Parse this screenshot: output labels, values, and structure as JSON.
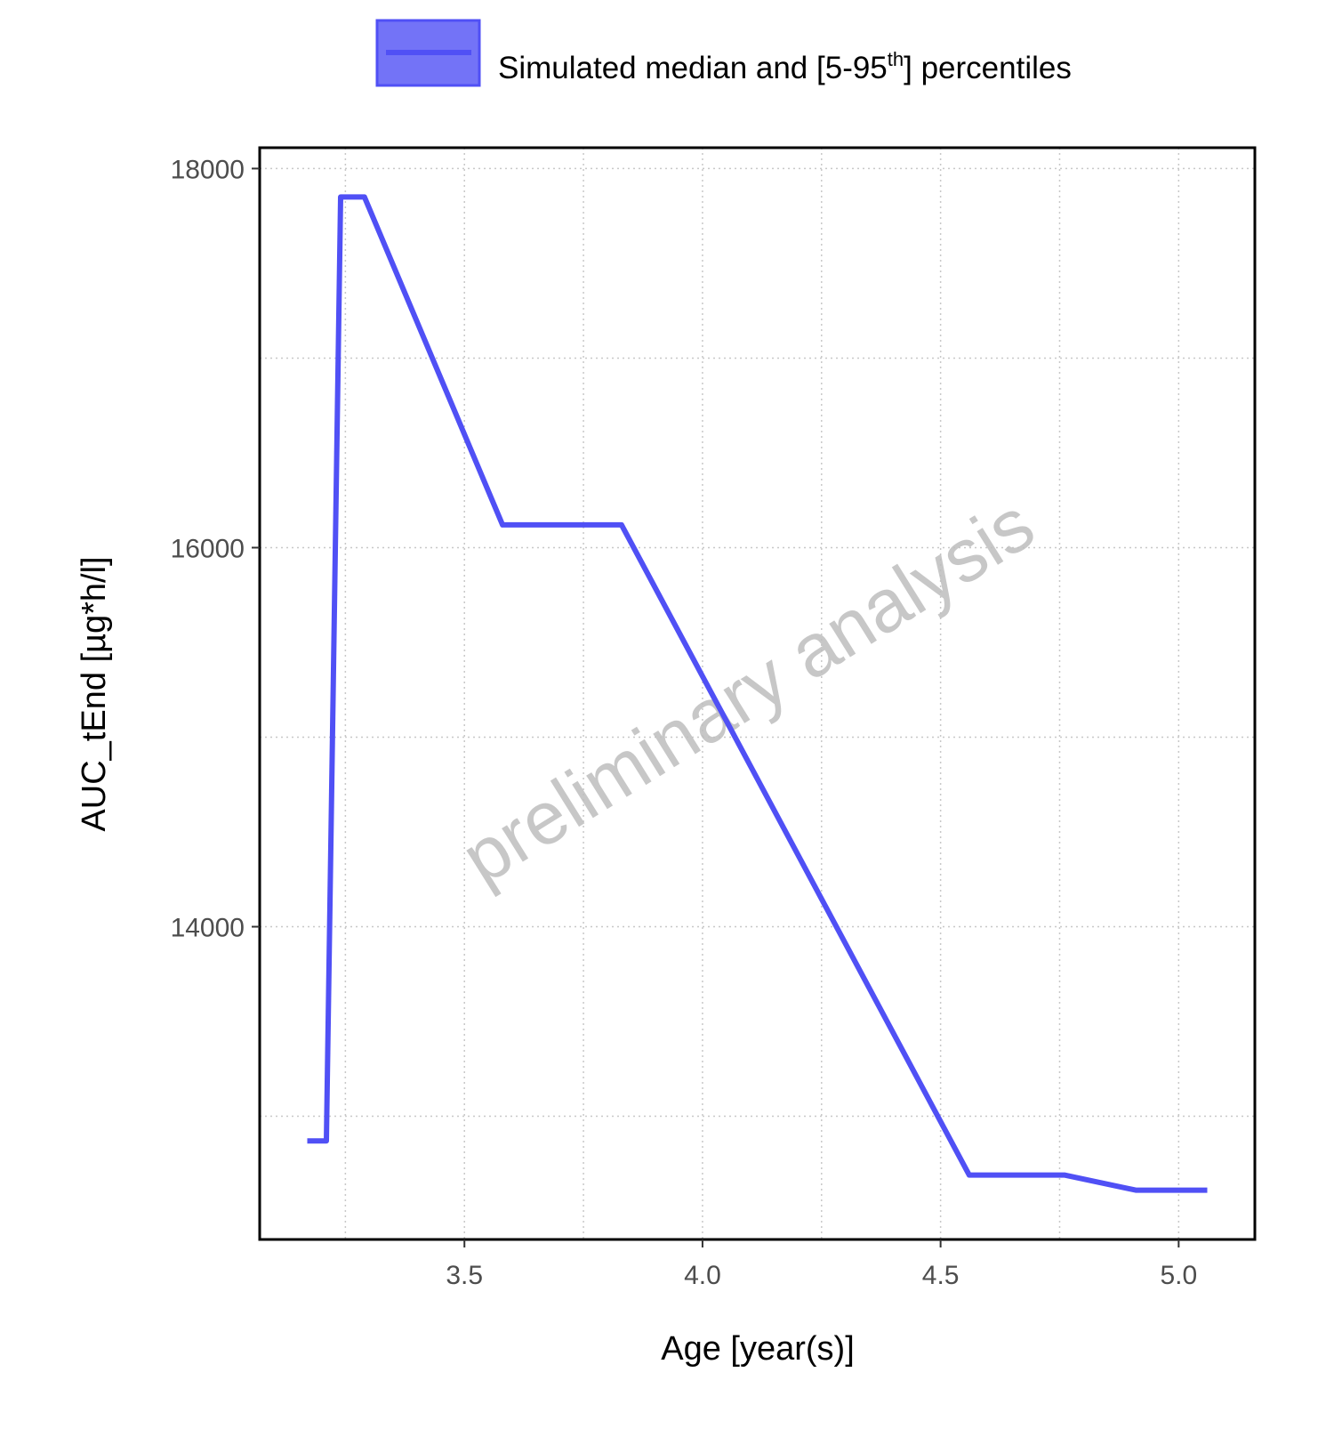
{
  "chart_data": {
    "type": "line",
    "title": "",
    "xlabel": "Age [year(s)]",
    "ylabel": "AUC_tEnd [µg*h/l]",
    "xlim": [
      3.07,
      5.16
    ],
    "ylim": [
      12350,
      18110
    ],
    "x_ticks": [
      3.5,
      4.0,
      4.5,
      5.0
    ],
    "x_tick_labels": [
      "3.5",
      "4.0",
      "4.5",
      "5.0"
    ],
    "y_ticks": [
      14000,
      16000,
      18000
    ],
    "y_tick_labels": [
      "14000",
      "16000",
      "18000"
    ],
    "grid": true,
    "legend": {
      "position": "top",
      "label_main": "Simulated median and [5-95",
      "label_sup": "th",
      "label_end": "] percentiles"
    },
    "series": [
      {
        "name": "Simulated median and [5-95th] percentiles",
        "color": "#5050f5",
        "x": [
          3.17,
          3.21,
          3.24,
          3.29,
          3.58,
          3.83,
          4.56,
          4.76,
          4.91,
          5.06
        ],
        "y": [
          12870,
          12870,
          17850,
          17850,
          16120,
          16120,
          12690,
          12690,
          12610,
          12610
        ]
      }
    ],
    "watermark": "preliminary analysis"
  }
}
